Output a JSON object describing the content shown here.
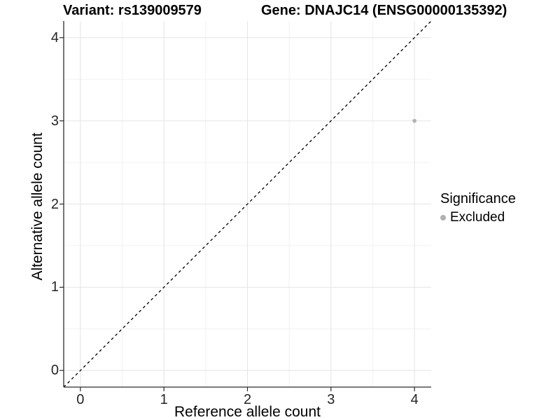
{
  "chart_data": {
    "type": "scatter",
    "title_left": "Variant: rs139009579",
    "title_right": "Gene: DNAJC14 (ENSG00000135392)",
    "xlabel": "Reference allele count",
    "ylabel": "Alternative allele count",
    "xlim": [
      -0.2,
      4.2
    ],
    "ylim": [
      -0.2,
      4.2
    ],
    "x_ticks": [
      0,
      1,
      2,
      3,
      4
    ],
    "y_ticks": [
      0,
      1,
      2,
      3,
      4
    ],
    "x_minor_ticks": [
      0.5,
      1.5,
      2.5,
      3.5
    ],
    "y_minor_ticks": [
      0.5,
      1.5,
      2.5,
      3.5
    ],
    "grid": true,
    "identity_line": {
      "style": "dashed",
      "x1": -0.2,
      "y1": -0.2,
      "x2": 4.2,
      "y2": 4.2
    },
    "series": [
      {
        "name": "Excluded",
        "color": "#b0b0b0",
        "points": [
          {
            "x": 4,
            "y": 3
          }
        ]
      }
    ],
    "legend": {
      "title": "Significance",
      "position": "right",
      "entries": [
        {
          "label": "Excluded",
          "color": "#b0b0b0"
        }
      ]
    }
  },
  "colors": {
    "background": "#ffffff",
    "grid_major": "#e6e6e6",
    "grid_minor": "#f2f2f2",
    "axis_line": "#2b2b2b",
    "tick_mark": "#2b2b2b",
    "tick_text": "#262626",
    "title_text": "#000000",
    "identity_line": "#000000",
    "point": "#b0b0b0"
  }
}
